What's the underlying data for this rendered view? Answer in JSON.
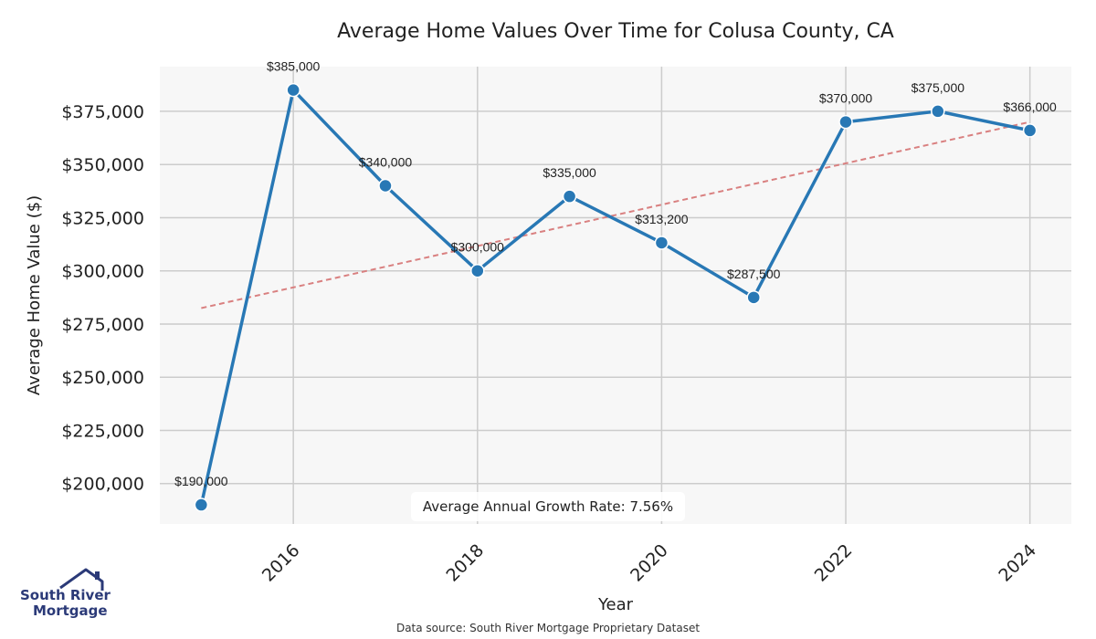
{
  "title": "Average Home Values Over Time for Colusa County, CA",
  "source_note": "Data source: South River Mortgage Proprietary Dataset",
  "logo": {
    "line1": "South River",
    "line2": "Mortgage",
    "color": "#2b3a78"
  },
  "colors": {
    "line": "#2878b5",
    "trend": "#d98080",
    "plot_bg": "#f7f7f7",
    "grid": "#cccccc"
  },
  "chart_data": {
    "type": "line",
    "title": "Average Home Values Over Time for Colusa County, CA",
    "xlabel": "Year",
    "ylabel": "Average Home Value ($)",
    "x": [
      2015,
      2016,
      2017,
      2018,
      2019,
      2020,
      2021,
      2022,
      2023,
      2024
    ],
    "y": [
      190000,
      385000,
      340000,
      300000,
      335000,
      313200,
      287500,
      370000,
      375000,
      366000
    ],
    "point_labels": [
      "$190,000",
      "$385,000",
      "$340,000",
      "$300,000",
      "$335,000",
      "$313,200",
      "$287,500",
      "$370,000",
      "$375,000",
      "$366,000"
    ],
    "xticks": [
      2016,
      2018,
      2020,
      2022,
      2024
    ],
    "xtick_labels": [
      "2016",
      "2018",
      "2020",
      "2022",
      "2024"
    ],
    "yticks": [
      200000,
      225000,
      250000,
      275000,
      300000,
      325000,
      350000,
      375000
    ],
    "ytick_labels": [
      "$200,000",
      "$225,000",
      "$250,000",
      "$275,000",
      "$300,000",
      "$325,000",
      "$350,000",
      "$375,000"
    ],
    "xlim": [
      2014.55,
      2024.45
    ],
    "ylim": [
      181000,
      396000
    ],
    "trend_line": {
      "x": [
        2015,
        2024
      ],
      "y": [
        282500,
        370000
      ],
      "style": "dashed"
    },
    "annotation": "Average Annual Growth Rate: 7.56%",
    "grid": true
  }
}
